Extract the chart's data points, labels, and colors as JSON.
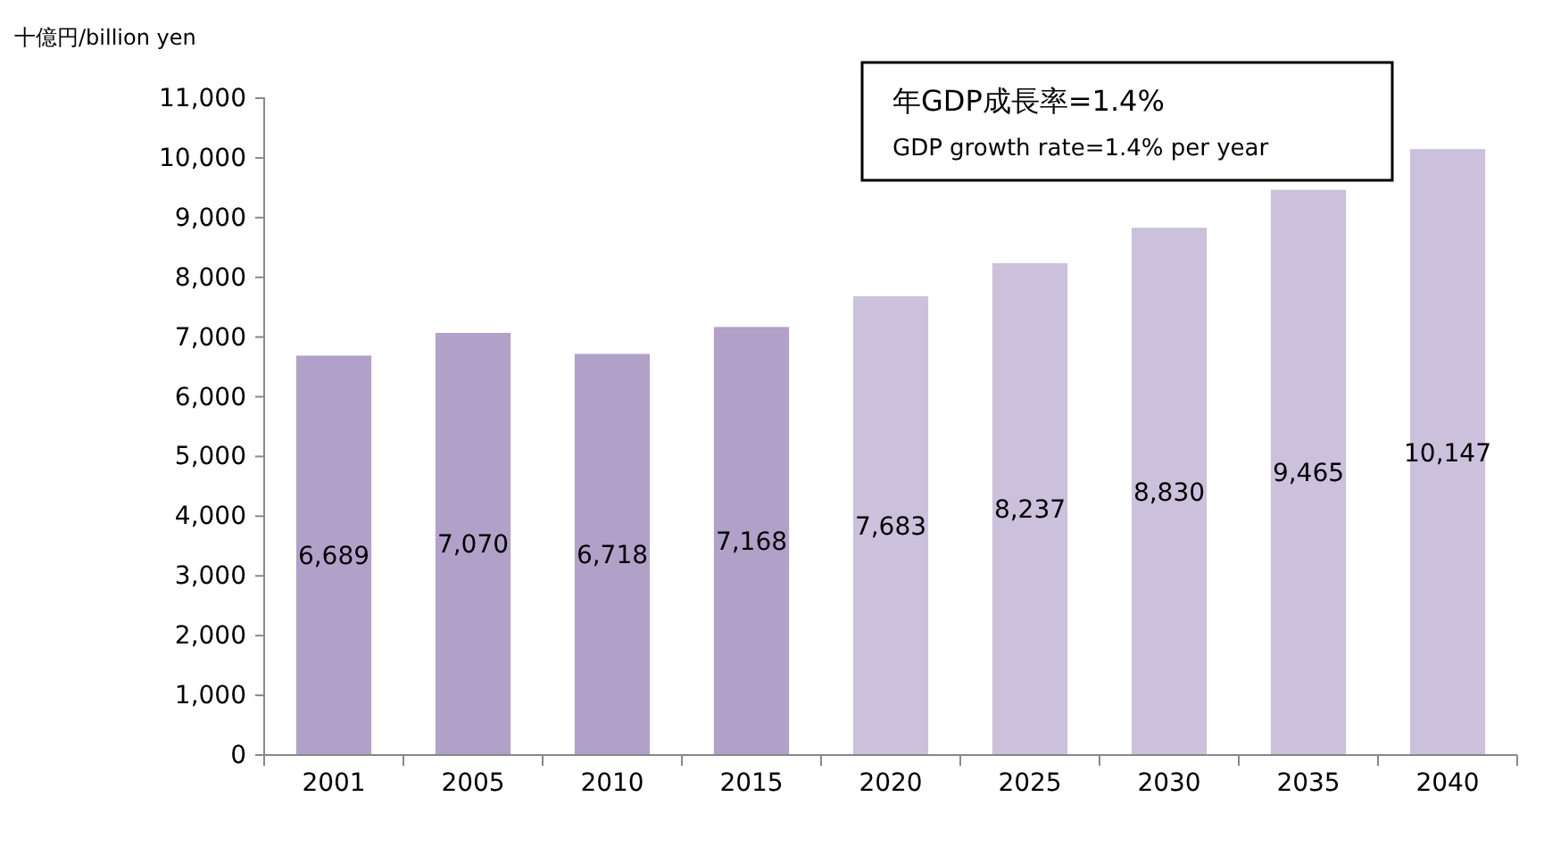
{
  "chart_data": {
    "type": "bar",
    "ylabel": "十億円/billion yen",
    "categories": [
      "2001",
      "2005",
      "2010",
      "2015",
      "2020",
      "2025",
      "2030",
      "2035",
      "2040"
    ],
    "values": [
      6689,
      7070,
      6718,
      7168,
      7683,
      8237,
      8830,
      9465,
      10147
    ],
    "colors": [
      "#b1a1c9",
      "#b1a1c9",
      "#b1a1c9",
      "#b1a1c9",
      "#cbc1dd",
      "#cbc1dd",
      "#cbc1dd",
      "#cbc1dd",
      "#cbc1dd"
    ],
    "ylim": [
      0,
      11000
    ],
    "yticks": [
      {
        "value": 0,
        "label": "0"
      },
      {
        "value": 1000,
        "label": "1,000"
      },
      {
        "value": 2000,
        "label": "2,000"
      },
      {
        "value": 3000,
        "label": "3,000"
      },
      {
        "value": 4000,
        "label": "4,000"
      },
      {
        "value": 5000,
        "label": "5,000"
      },
      {
        "value": 6000,
        "label": "6,000"
      },
      {
        "value": 7000,
        "label": "7,000"
      },
      {
        "value": 8000,
        "label": "8,000"
      },
      {
        "value": 9000,
        "label": "9,000"
      },
      {
        "value": 10000,
        "label": "10,000"
      },
      {
        "value": 11000,
        "label": "11,000"
      }
    ],
    "value_labels": [
      "6,689",
      "7,070",
      "6,718",
      "7,168",
      "7,683",
      "8,237",
      "8,830",
      "9,465",
      "10,147"
    ],
    "annotations": [
      "年GDP成長率=1.4%",
      "GDP growth rate=1.4% per year"
    ],
    "grid": false
  }
}
